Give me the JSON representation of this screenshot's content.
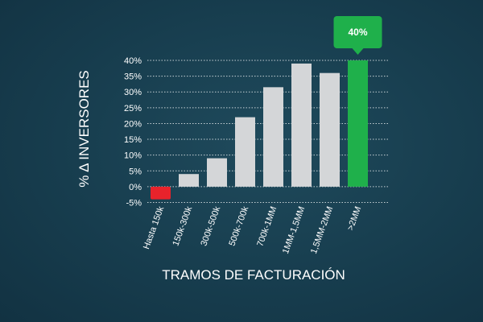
{
  "chart_data": {
    "type": "bar",
    "title": "",
    "xlabel": "TRAMOS DE FACTURACIÓN",
    "ylabel": "% Δ INVERSORES",
    "categories": [
      "Hasta 150k",
      "150k-300k",
      "300k-500k",
      "500k-700k",
      "700k-1MM",
      "1MM-1,5MM",
      "1,5MM-2MM",
      ">2MM"
    ],
    "values": [
      -4,
      4,
      9,
      22,
      31.5,
      39,
      36,
      40
    ],
    "ylim": [
      -5,
      40
    ],
    "yticks": [
      -5,
      0,
      5,
      10,
      15,
      20,
      25,
      30,
      35,
      40
    ],
    "ytick_labels": [
      "-5%",
      "0%",
      "5%",
      "10%",
      "15%",
      "20%",
      "25%",
      "30%",
      "35%",
      "40%"
    ],
    "grid": true,
    "highlight": {
      "category": ">2MM",
      "label": "40%"
    },
    "colors": {
      "bar": "#d4d6d8",
      "negative": "#e8232b",
      "highlight": "#1fb04b",
      "grid": "#ffffff",
      "text": "#ffffff"
    }
  }
}
